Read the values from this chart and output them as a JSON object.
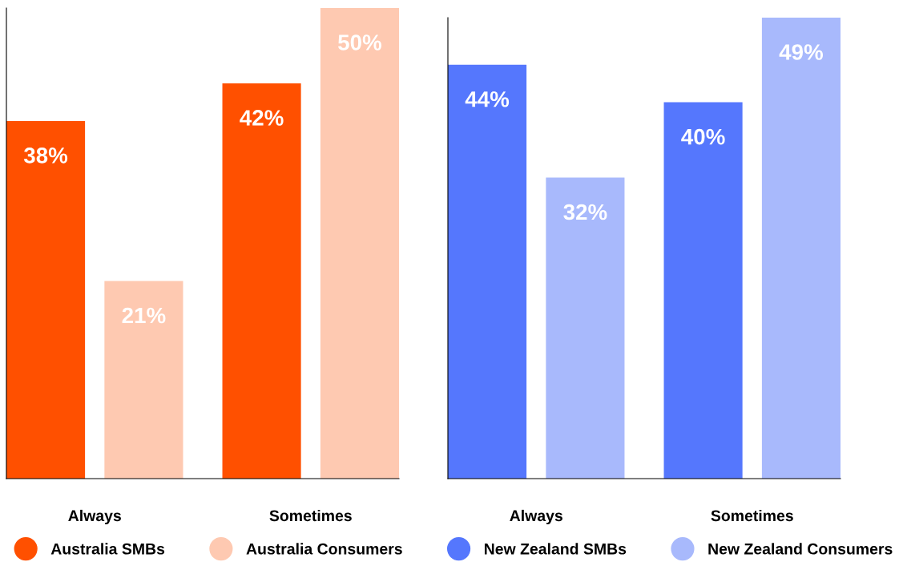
{
  "chart_data": [
    {
      "type": "bar",
      "categories": [
        "Always",
        "Sometimes"
      ],
      "series": [
        {
          "name": "Australia SMBs",
          "color": "#ff5000",
          "values": [
            38,
            42
          ],
          "value_labels": [
            "38%",
            "42%"
          ]
        },
        {
          "name": "Australia Consumers",
          "color": "#fec9b1",
          "values": [
            21,
            50
          ],
          "value_labels": [
            "21%",
            "50%"
          ]
        }
      ],
      "tick_labels": "x",
      "grid": false,
      "legend": "bottom"
    },
    {
      "type": "bar",
      "categories": [
        "Always",
        "Sometimes"
      ],
      "series": [
        {
          "name": "New Zealand SMBs",
          "color": "#5577fd",
          "values": [
            44,
            40
          ],
          "value_labels": [
            "44%",
            "40%"
          ]
        },
        {
          "name": "New Zealand Consumers",
          "color": "#a8b9fc",
          "values": [
            32,
            49
          ],
          "value_labels": [
            "32%",
            "49%"
          ]
        }
      ],
      "tick_labels": "x",
      "grid": false,
      "legend": "bottom"
    }
  ]
}
